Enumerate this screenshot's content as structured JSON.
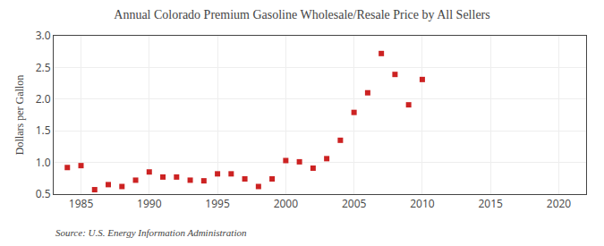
{
  "chart_data": {
    "type": "scatter",
    "title": "Annual Colorado Premium Gasoline Wholesale/Resale Price by All Sellers",
    "y_label": "Dollars per Gallon",
    "annotations": [
      "Source: U.S. Energy Information Administration"
    ],
    "x": [
      1984,
      1985,
      1986,
      1987,
      1988,
      1989,
      1990,
      1991,
      1992,
      1993,
      1994,
      1995,
      1996,
      1997,
      1998,
      1999,
      2000,
      2001,
      2002,
      2003,
      2004,
      2005,
      2006,
      2007,
      2008,
      2009,
      2010
    ],
    "values": [
      0.92,
      0.95,
      0.57,
      0.65,
      0.62,
      0.72,
      0.85,
      0.77,
      0.77,
      0.72,
      0.71,
      0.82,
      0.82,
      0.74,
      0.62,
      0.74,
      1.03,
      1.01,
      0.91,
      1.06,
      1.35,
      1.79,
      2.1,
      2.72,
      2.39,
      1.91,
      2.31
    ],
    "color": "#cc2222",
    "marker": "square",
    "xlim": [
      1983,
      2022
    ],
    "ylim": [
      0.5,
      3.0
    ],
    "xticks": [
      1985,
      1990,
      1995,
      2000,
      2005,
      2010,
      2015,
      2020
    ],
    "yticks": [
      0.5,
      {
        "value": 1.0,
        "label": "1.0"
      },
      1.5,
      {
        "value": 2.0,
        "label": "2.0"
      },
      2.5,
      {
        "value": 3.0,
        "label": "3.0"
      }
    ],
    "grid": true
  }
}
